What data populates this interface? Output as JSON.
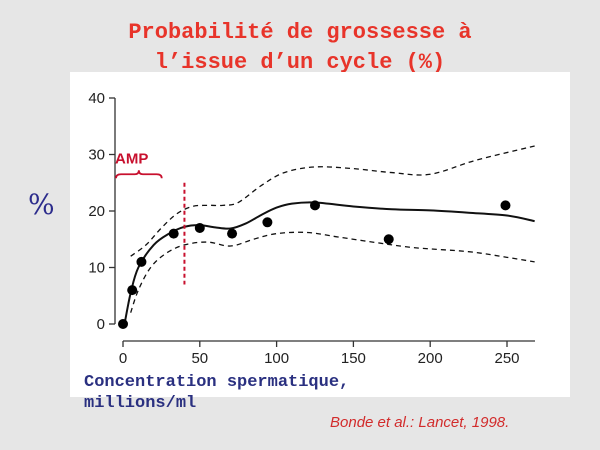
{
  "slide": {
    "title_line1": "Probabilité de grossesse à",
    "title_line2": "l’issue d’un cycle (%)",
    "y_symbol": "%",
    "x_label_line1": "Concentration spermatique,",
    "x_label_line2": "millions/ml",
    "citation": "Bonde et al.: Lancet, 1998.",
    "colors": {
      "title": "#e8342a",
      "axis_label": "#2a3080",
      "citation": "#d22b2b",
      "threshold": "#c8102e",
      "background": "#e6e6e6"
    }
  },
  "chart_data": {
    "type": "line",
    "xlim": [
      0,
      260
    ],
    "ylim": [
      0,
      40
    ],
    "x_ticks": [
      "0",
      "50",
      "100",
      "150",
      "200",
      "250"
    ],
    "y_ticks": [
      "0",
      "10",
      "20",
      "30",
      "40"
    ],
    "grid": false,
    "points": [
      {
        "x": 0,
        "y": 0
      },
      {
        "x": 6,
        "y": 6
      },
      {
        "x": 12,
        "y": 11
      },
      {
        "x": 33,
        "y": 16
      },
      {
        "x": 50,
        "y": 17
      },
      {
        "x": 71,
        "y": 16
      },
      {
        "x": 94,
        "y": 18
      },
      {
        "x": 125,
        "y": 21
      },
      {
        "x": 173,
        "y": 15
      },
      {
        "x": 249,
        "y": 21
      }
    ],
    "fit_curve": [
      {
        "x": 1,
        "y": 0
      },
      {
        "x": 5,
        "y": 5.5
      },
      {
        "x": 10,
        "y": 10
      },
      {
        "x": 20,
        "y": 14
      },
      {
        "x": 30,
        "y": 16
      },
      {
        "x": 40,
        "y": 17.2
      },
      {
        "x": 50,
        "y": 17.5
      },
      {
        "x": 60,
        "y": 17.1
      },
      {
        "x": 70,
        "y": 16.9
      },
      {
        "x": 80,
        "y": 17.8
      },
      {
        "x": 90,
        "y": 19.3
      },
      {
        "x": 100,
        "y": 20.6
      },
      {
        "x": 110,
        "y": 21.3
      },
      {
        "x": 125,
        "y": 21.5
      },
      {
        "x": 150,
        "y": 20.8
      },
      {
        "x": 175,
        "y": 20.3
      },
      {
        "x": 200,
        "y": 20.1
      },
      {
        "x": 225,
        "y": 19.7
      },
      {
        "x": 250,
        "y": 19.2
      },
      {
        "x": 268,
        "y": 18.2
      }
    ],
    "ci_upper": [
      {
        "x": 5,
        "y": 12
      },
      {
        "x": 15,
        "y": 14
      },
      {
        "x": 25,
        "y": 17
      },
      {
        "x": 35,
        "y": 19.5
      },
      {
        "x": 45,
        "y": 20.8
      },
      {
        "x": 55,
        "y": 21
      },
      {
        "x": 65,
        "y": 21
      },
      {
        "x": 75,
        "y": 21.5
      },
      {
        "x": 90,
        "y": 24.5
      },
      {
        "x": 105,
        "y": 26.8
      },
      {
        "x": 125,
        "y": 27.8
      },
      {
        "x": 150,
        "y": 27.5
      },
      {
        "x": 175,
        "y": 26.8
      },
      {
        "x": 200,
        "y": 26.5
      },
      {
        "x": 230,
        "y": 29
      },
      {
        "x": 268,
        "y": 31.5
      }
    ],
    "ci_lower": [
      {
        "x": 5,
        "y": 2
      },
      {
        "x": 10,
        "y": 6
      },
      {
        "x": 18,
        "y": 10
      },
      {
        "x": 28,
        "y": 12.5
      },
      {
        "x": 40,
        "y": 14
      },
      {
        "x": 55,
        "y": 14.5
      },
      {
        "x": 70,
        "y": 13.8
      },
      {
        "x": 85,
        "y": 15
      },
      {
        "x": 100,
        "y": 16
      },
      {
        "x": 120,
        "y": 16.2
      },
      {
        "x": 140,
        "y": 15.4
      },
      {
        "x": 165,
        "y": 14.4
      },
      {
        "x": 190,
        "y": 13.5
      },
      {
        "x": 225,
        "y": 12.8
      },
      {
        "x": 250,
        "y": 11.8
      },
      {
        "x": 268,
        "y": 11
      }
    ],
    "threshold_x": 40,
    "annotation": {
      "label": "AMP",
      "x_from": 0,
      "x_to": 20
    }
  }
}
